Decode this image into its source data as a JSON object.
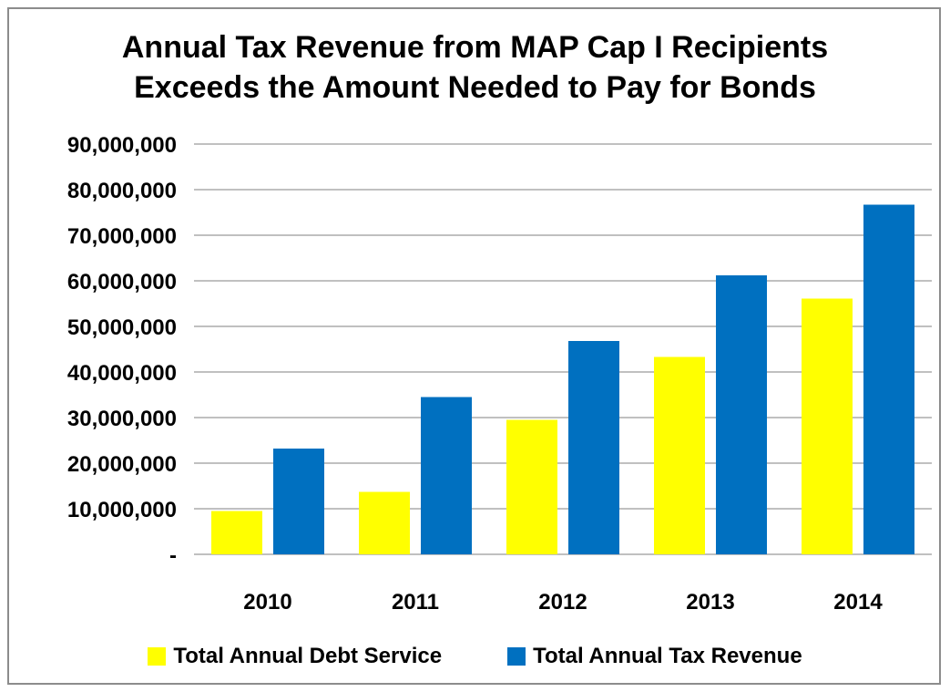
{
  "chart_data": {
    "type": "bar",
    "title": "Annual Tax Revenue from MAP Cap I Recipients",
    "subtitle": "Exceeds the Amount Needed to Pay  for Bonds",
    "categories": [
      "2010",
      "2011",
      "2012",
      "2013",
      "2014"
    ],
    "series": [
      {
        "name": "Total Annual Debt Service",
        "color": "#FFFF00",
        "values": [
          9500000,
          13700000,
          29500000,
          43300000,
          56100000
        ]
      },
      {
        "name": "Total Annual Tax Revenue",
        "color": "#0070C0",
        "values": [
          23200000,
          34500000,
          46800000,
          61200000,
          76700000
        ]
      }
    ],
    "ylim": [
      0,
      90000000
    ],
    "yticks": [
      0,
      10000000,
      20000000,
      30000000,
      40000000,
      50000000,
      60000000,
      70000000,
      80000000,
      90000000
    ],
    "ytick_labels": [
      "-",
      "10,000,000",
      "20,000,000",
      "30,000,000",
      "40,000,000",
      "50,000,000",
      "60,000,000",
      "70,000,000",
      "80,000,000",
      "90,000,000"
    ],
    "grid": true,
    "legend_position": "bottom"
  }
}
